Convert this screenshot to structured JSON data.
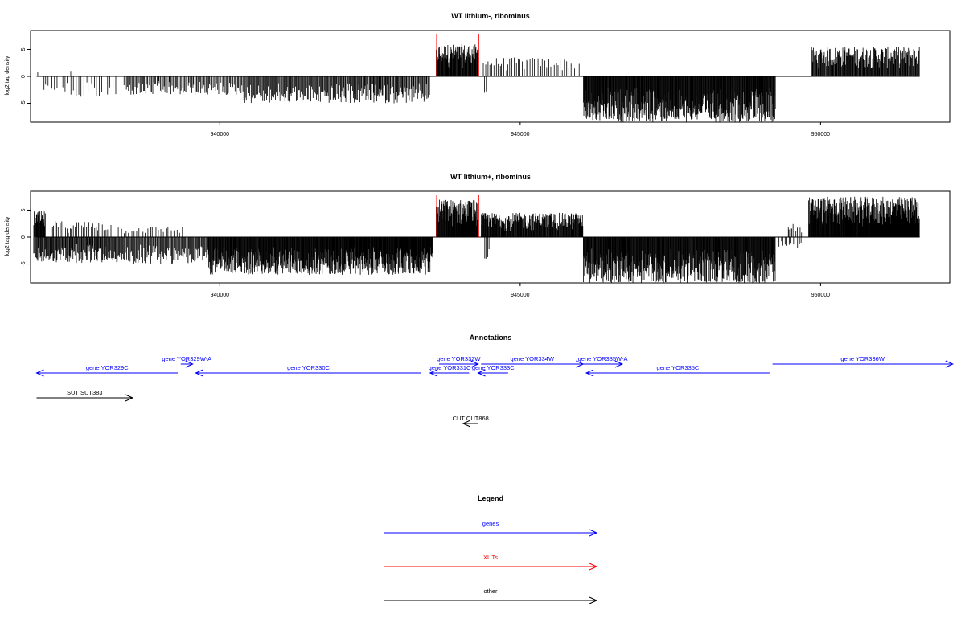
{
  "chart_data": [
    {
      "type": "bar",
      "title": "WT lithium-, ribominus",
      "ylabel": "log2 tag density",
      "xlabel": "",
      "xlim": [
        936850,
        952150
      ],
      "ylim": [
        -8.5,
        8.5
      ],
      "x_ticks": [
        940000,
        945000,
        950000
      ],
      "y_ticks": [
        5,
        0,
        -5
      ],
      "marker_lines": [
        {
          "x": 943610,
          "color": "#ff0000"
        },
        {
          "x": 944310,
          "color": "#ff0000"
        }
      ],
      "positive_segments": [
        {
          "start": 936950,
          "end": 937000,
          "max": 1.5,
          "density": 0.2
        },
        {
          "start": 937500,
          "end": 937550,
          "max": 1.0,
          "density": 0.2
        },
        {
          "start": 943600,
          "end": 944300,
          "max": 6.0,
          "density": 0.9
        },
        {
          "start": 944350,
          "end": 946000,
          "max": 3.5,
          "density": 0.2
        },
        {
          "start": 949850,
          "end": 951650,
          "max": 5.5,
          "density": 0.7
        }
      ],
      "negative_segments": [
        {
          "start": 937050,
          "end": 938300,
          "min": -4.0,
          "density": 0.15
        },
        {
          "start": 938400,
          "end": 940400,
          "min": -3.5,
          "density": 0.35
        },
        {
          "start": 940400,
          "end": 943500,
          "min": -5.0,
          "density": 0.5
        },
        {
          "start": 944400,
          "end": 944450,
          "min": -3.2,
          "density": 0.3
        },
        {
          "start": 946050,
          "end": 949250,
          "min": -8.5,
          "density": 1.0
        }
      ]
    },
    {
      "type": "bar",
      "title": "WT lithium+, ribominus",
      "ylabel": "log2 tag density",
      "xlabel": "",
      "xlim": [
        936850,
        952150
      ],
      "ylim": [
        -8.5,
        8.5
      ],
      "x_ticks": [
        940000,
        945000,
        950000
      ],
      "y_ticks": [
        5,
        0,
        -5
      ],
      "marker_lines": [
        {
          "x": 943610,
          "color": "#ff0000"
        },
        {
          "x": 944310,
          "color": "#ff0000"
        }
      ],
      "positive_segments": [
        {
          "start": 936900,
          "end": 937100,
          "max": 4.8,
          "density": 0.9
        },
        {
          "start": 937200,
          "end": 938200,
          "max": 3.0,
          "density": 0.25
        },
        {
          "start": 938300,
          "end": 939400,
          "max": 2.0,
          "density": 0.15
        },
        {
          "start": 943600,
          "end": 944300,
          "max": 7.0,
          "density": 1.0
        },
        {
          "start": 944350,
          "end": 946050,
          "max": 4.5,
          "density": 0.85
        },
        {
          "start": 949450,
          "end": 949700,
          "max": 2.5,
          "density": 0.3
        },
        {
          "start": 949800,
          "end": 951650,
          "max": 7.5,
          "density": 1.0
        }
      ],
      "negative_segments": [
        {
          "start": 936900,
          "end": 938300,
          "min": -4.8,
          "density": 0.6
        },
        {
          "start": 938300,
          "end": 939800,
          "min": -5.0,
          "density": 0.5
        },
        {
          "start": 939800,
          "end": 943550,
          "min": -7.0,
          "density": 1.0
        },
        {
          "start": 944400,
          "end": 944500,
          "min": -4.0,
          "density": 0.3
        },
        {
          "start": 946050,
          "end": 949250,
          "min": -8.5,
          "density": 1.0
        },
        {
          "start": 949300,
          "end": 949700,
          "min": -2.0,
          "density": 0.2
        }
      ]
    }
  ],
  "annotations": {
    "title": "Annotations",
    "xlim": [
      936850,
      952150
    ],
    "features": [
      {
        "label": "gene YOR329C",
        "start": 936950,
        "end": 939300,
        "strand": "-",
        "row": 1,
        "color": "#0000ff"
      },
      {
        "label": "gene YOR329W-A",
        "start": 939350,
        "end": 939550,
        "strand": "+",
        "row": 0,
        "color": "#0000ff"
      },
      {
        "label": "gene YOR330C",
        "start": 939600,
        "end": 943350,
        "strand": "-",
        "row": 1,
        "color": "#0000ff"
      },
      {
        "label": "gene YOR331C",
        "start": 943500,
        "end": 944150,
        "strand": "-",
        "row": 1,
        "color": "#0000ff"
      },
      {
        "label": "gene YOR332W",
        "start": 943650,
        "end": 944300,
        "strand": "+",
        "row": 0,
        "color": "#0000ff"
      },
      {
        "label": "gene YOR333C",
        "start": 944300,
        "end": 944800,
        "strand": "-",
        "row": 1,
        "color": "#0000ff"
      },
      {
        "label": "gene YOR334W",
        "start": 944350,
        "end": 946050,
        "strand": "+",
        "row": 0,
        "color": "#0000ff"
      },
      {
        "label": "gene YOR335W-A",
        "start": 946050,
        "end": 946700,
        "strand": "+",
        "row": 0,
        "color": "#0000ff"
      },
      {
        "label": "gene YOR335C",
        "start": 946100,
        "end": 949150,
        "strand": "-",
        "row": 1,
        "color": "#0000ff"
      },
      {
        "label": "gene YOR336W",
        "start": 949200,
        "end": 952200,
        "strand": "+",
        "row": 0,
        "color": "#0000ff"
      },
      {
        "label": "SUT SUT383",
        "start": 936950,
        "end": 938550,
        "strand": "+",
        "row": 2,
        "color": "#000000"
      },
      {
        "label": "CUT CUT868",
        "start": 944050,
        "end": 944300,
        "strand": "-",
        "row": 3,
        "color": "#000000"
      }
    ]
  },
  "legend": {
    "title": "Legend",
    "items": [
      {
        "label": "genes",
        "color": "#0000ff"
      },
      {
        "label": "XUTs",
        "color": "#ff0000"
      },
      {
        "label": "other",
        "color": "#000000"
      }
    ]
  }
}
